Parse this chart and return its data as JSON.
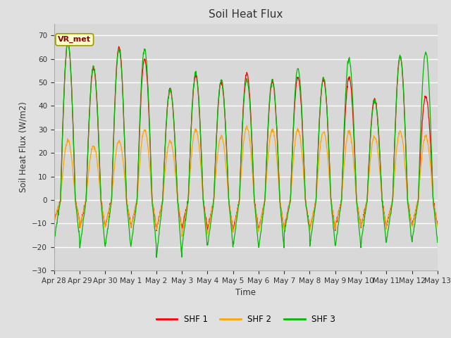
{
  "title": "Soil Heat Flux",
  "ylabel": "Soil Heat Flux (W/m2)",
  "xlabel": "Time",
  "ylim": [
    -30,
    75
  ],
  "yticks": [
    -30,
    -20,
    -10,
    0,
    10,
    20,
    30,
    40,
    50,
    60,
    70
  ],
  "colors": {
    "SHF 1": "#ff0000",
    "SHF 2": "#ffa500",
    "SHF 3": "#00bb00"
  },
  "legend_label": "VR_met",
  "figure_color": "#e0e0e0",
  "plot_background": "#d8d8d8",
  "grid_color": "#ffffff",
  "x_tick_labels": [
    "Apr 28",
    "Apr 29",
    "Apr 30",
    "May 1",
    "May 2",
    "May 3",
    "May 4",
    "May 5",
    "May 6",
    "May 7",
    "May 8",
    "May 9",
    "May 10",
    "May 11",
    "May 12",
    "May 13"
  ],
  "n_days": 15,
  "pts_per_day": 96
}
